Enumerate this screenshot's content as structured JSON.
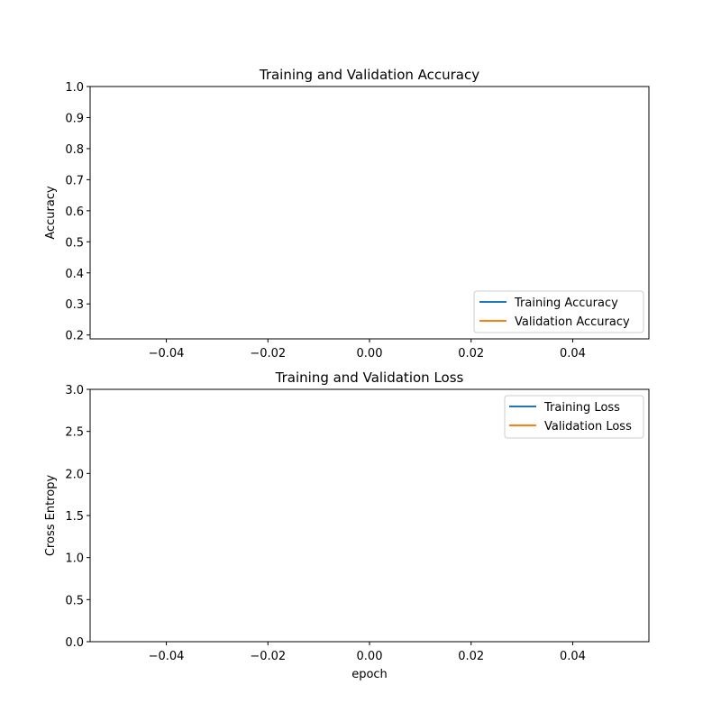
{
  "chart_data": [
    {
      "type": "line",
      "title": "Training and Validation Accuracy",
      "xlabel": "",
      "ylabel": "Accuracy",
      "xlim": [
        -0.055,
        0.055
      ],
      "ylim": [
        0.1875,
        1.0
      ],
      "x_ticks": [
        -0.04,
        -0.02,
        0.0,
        0.02,
        0.04
      ],
      "x_tick_labels": [
        "−0.04",
        "−0.02",
        "0.00",
        "0.02",
        "0.04"
      ],
      "y_ticks": [
        0.2,
        0.3,
        0.4,
        0.5,
        0.6,
        0.7,
        0.8,
        0.9,
        1.0
      ],
      "y_tick_labels": [
        "0.2",
        "0.3",
        "0.4",
        "0.5",
        "0.6",
        "0.7",
        "0.8",
        "0.9",
        "1.0"
      ],
      "grid": false,
      "legend": "lower right",
      "series": [
        {
          "name": "Training Accuracy",
          "color": "#1f77b4",
          "x": [],
          "y": []
        },
        {
          "name": "Validation Accuracy",
          "color": "#ff7f0e",
          "x": [],
          "y": []
        }
      ]
    },
    {
      "type": "line",
      "title": "Training and Validation Loss",
      "xlabel": "epoch",
      "ylabel": "Cross Entropy",
      "xlim": [
        -0.055,
        0.055
      ],
      "ylim": [
        0.0,
        3.0
      ],
      "x_ticks": [
        -0.04,
        -0.02,
        0.0,
        0.02,
        0.04
      ],
      "x_tick_labels": [
        "−0.04",
        "−0.02",
        "0.00",
        "0.02",
        "0.04"
      ],
      "y_ticks": [
        0.0,
        0.5,
        1.0,
        1.5,
        2.0,
        2.5,
        3.0
      ],
      "y_tick_labels": [
        "0.0",
        "0.5",
        "1.0",
        "1.5",
        "2.0",
        "2.5",
        "3.0"
      ],
      "grid": false,
      "legend": "upper right",
      "series": [
        {
          "name": "Training Loss",
          "color": "#1f77b4",
          "x": [],
          "y": []
        },
        {
          "name": "Validation Loss",
          "color": "#ff7f0e",
          "x": [],
          "y": []
        }
      ]
    }
  ]
}
